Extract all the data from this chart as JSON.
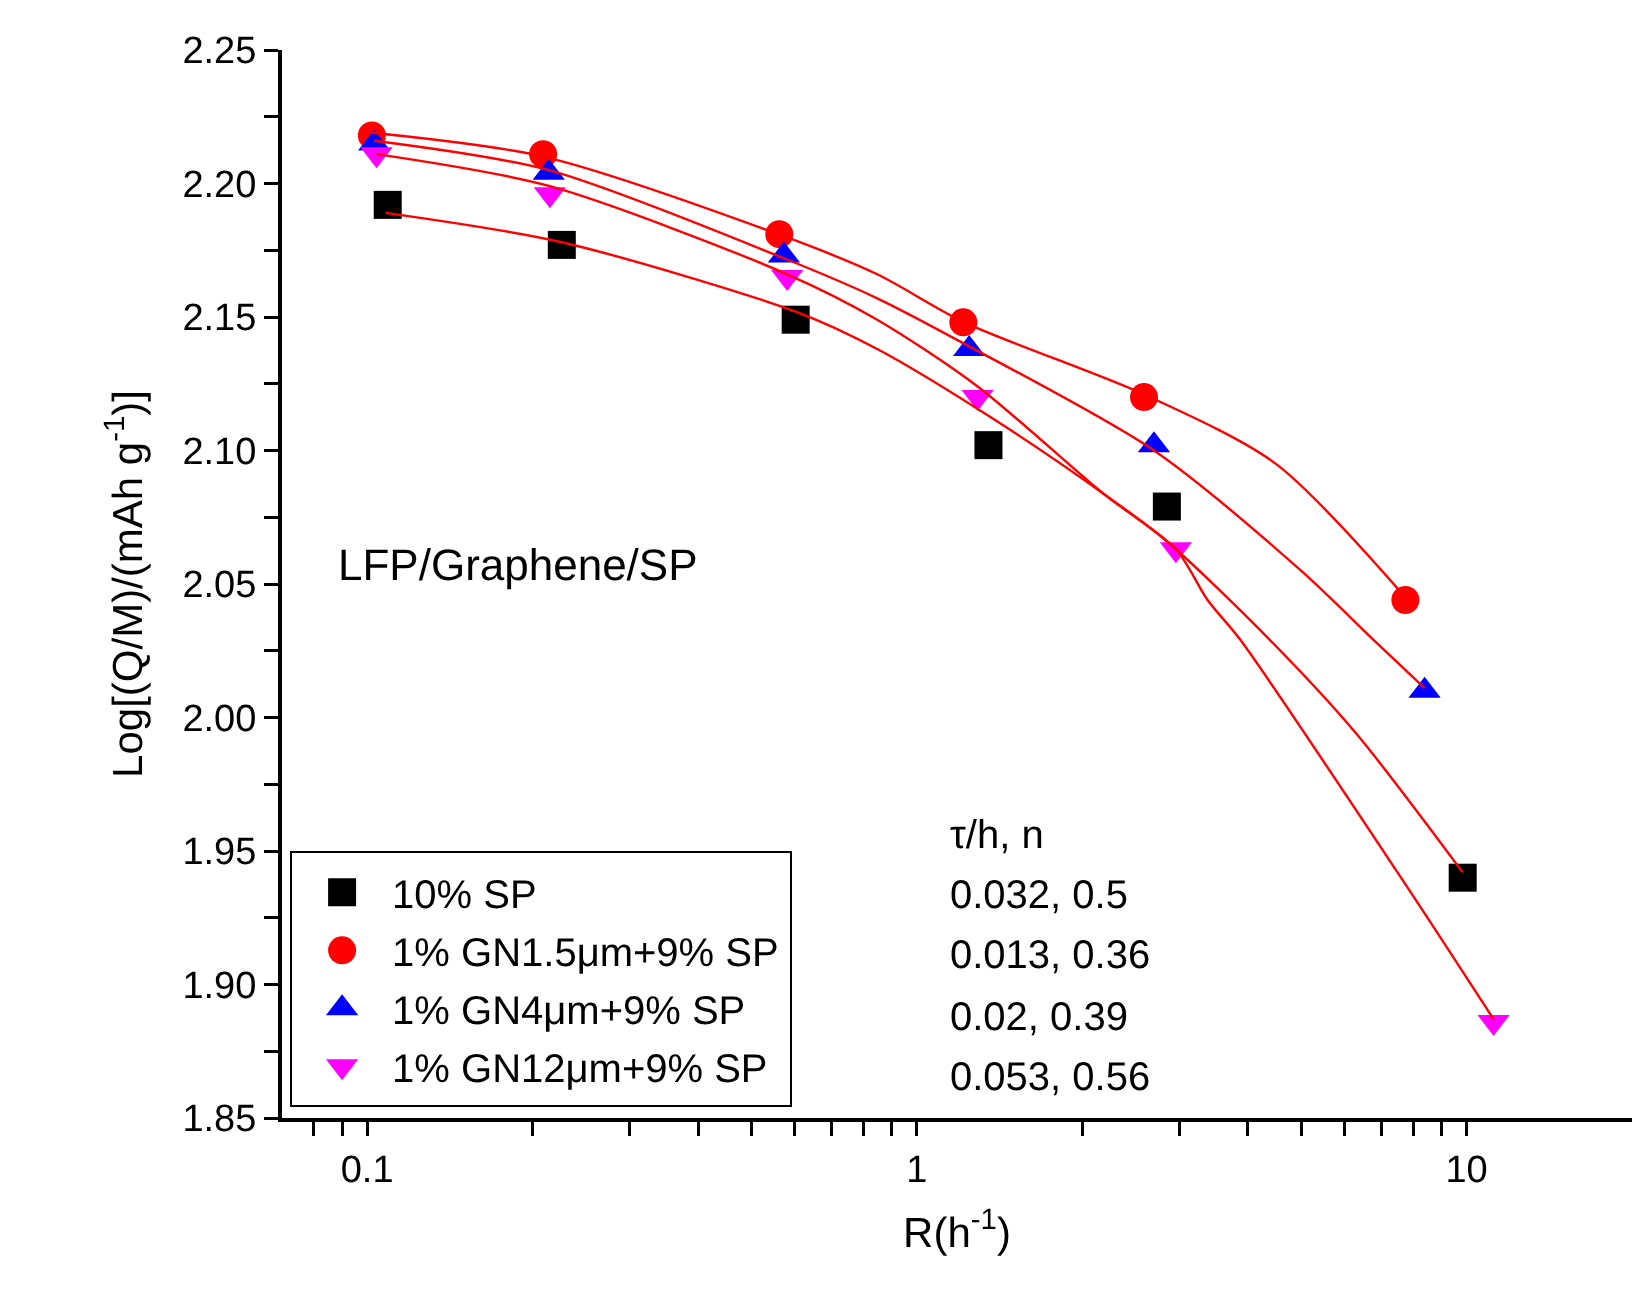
{
  "chart_data": {
    "type": "scatter",
    "xlabel": "R(h$^{-1}$)",
    "ylabel": "Log[(Q/M)/(mAh g$^{-1}$)]",
    "log": "x",
    "xlim": [
      0.07,
      20
    ],
    "xticks": [
      {
        "value": 0.08,
        "label": null
      },
      {
        "value": 0.09,
        "label": null
      },
      0.1,
      {
        "value": 0.2,
        "label": null
      },
      {
        "value": 0.3,
        "label": null
      },
      {
        "value": 0.4,
        "label": null
      },
      {
        "value": 0.5,
        "label": null
      },
      {
        "value": 0.6,
        "label": null
      },
      {
        "value": 0.7,
        "label": null
      },
      {
        "value": 0.8,
        "label": null
      },
      {
        "value": 0.9,
        "label": null
      },
      1,
      {
        "value": 2,
        "label": null
      },
      {
        "value": 3,
        "label": null
      },
      {
        "value": 4,
        "label": null
      },
      {
        "value": 5,
        "label": null
      },
      {
        "value": 6,
        "label": null
      },
      {
        "value": 7,
        "label": null
      },
      {
        "value": 8,
        "label": null
      },
      {
        "value": 9,
        "label": null
      },
      10
    ],
    "ylim": [
      1.85,
      2.25
    ],
    "yticks": [
      {
        "value": 1.85,
        "label": "1.85"
      },
      {
        "value": 1.875,
        "label": null
      },
      {
        "value": 1.9,
        "label": "1.90"
      },
      {
        "value": 1.925,
        "label": null
      },
      {
        "value": 1.95,
        "label": "1.95"
      },
      {
        "value": 1.975,
        "label": null
      },
      {
        "value": 2.0,
        "label": "2.00"
      },
      {
        "value": 2.025,
        "label": null
      },
      {
        "value": 2.05,
        "label": "2.05"
      },
      {
        "value": 2.075,
        "label": null
      },
      {
        "value": 2.1,
        "label": "2.10"
      },
      {
        "value": 2.125,
        "label": null
      },
      {
        "value": 2.15,
        "label": "2.15"
      },
      {
        "value": 2.175,
        "label": null
      },
      {
        "value": 2.2,
        "label": "2.20"
      },
      {
        "value": 2.225,
        "label": null
      },
      {
        "value": 2.25,
        "label": "2.25"
      }
    ],
    "grid": false,
    "legend": "bottom left",
    "annotations": [
      "LFP/Graphene/SP",
      "τ/h, n",
      "0.032, 0.5",
      "0.013, 0.36",
      "0.02, 0.39",
      "0.053, 0.56"
    ],
    "series": [
      {
        "type": "line",
        "color": "#ff0000",
        "marker": "none",
        "x": [
          0.108,
          0.226,
          0.602,
          0.847,
          1.35,
          2.18,
          2.85,
          4.39,
          6.3,
          9.84
        ],
        "values": [
          2.189,
          2.178,
          2.152,
          2.138,
          2.113,
          2.084,
          2.066,
          2.029,
          1.994,
          1.942
        ]
      },
      {
        "type": "line",
        "color": "#ff0000",
        "marker": "none",
        "x": [
          0.102,
          0.21,
          0.56,
          0.847,
          1.22,
          2.59,
          4.5,
          7.74
        ],
        "values": [
          2.219,
          2.21,
          2.181,
          2.166,
          2.148,
          2.121,
          2.095,
          2.045
        ]
      },
      {
        "type": "line",
        "color": "#ff0000",
        "marker": "none",
        "x": [
          0.103,
          0.214,
          0.573,
          0.847,
          1.245,
          2.7,
          5.0,
          6.78,
          8.39
        ],
        "values": [
          2.216,
          2.205,
          2.172,
          2.157,
          2.139,
          2.1,
          2.055,
          2.029,
          2.011
        ]
      },
      {
        "type": "line",
        "color": "#ff0000",
        "marker": "none",
        "x": [
          0.104,
          0.215,
          0.581,
          0.847,
          1.29,
          2.18,
          2.96,
          3.38,
          3.88,
          7.6,
          11.2
        ],
        "values": [
          2.211,
          2.199,
          2.166,
          2.149,
          2.124,
          2.084,
          2.063,
          2.044,
          2.029,
          1.94,
          1.887
        ]
      },
      {
        "name": "10% SP",
        "color": "#000000",
        "marker": "square",
        "x": [
          0.109,
          0.226,
          0.602,
          1.35,
          2.85,
          9.84
        ],
        "values": [
          2.192,
          2.177,
          2.149,
          2.102,
          2.079,
          1.94
        ]
      },
      {
        "name": "1% GN1.5μm+9% SP",
        "color": "#ff0000",
        "marker": "circle",
        "x": [
          0.102,
          0.209,
          0.562,
          1.215,
          2.59,
          7.74
        ],
        "values": [
          2.218,
          2.211,
          2.181,
          2.148,
          2.12,
          2.044
        ]
      },
      {
        "name": "1% GN4μm+9% SP",
        "color": "#0000ff",
        "marker": "triangle",
        "x": [
          0.103,
          0.214,
          0.573,
          1.245,
          2.7,
          8.39
        ],
        "values": [
          2.215,
          2.204,
          2.173,
          2.138,
          2.102,
          2.01
        ]
      },
      {
        "name": "1% GN12μm+9% SP",
        "color": "#ff00ff",
        "marker": "triangle-down",
        "x": [
          0.104,
          0.215,
          0.581,
          1.29,
          2.96,
          11.2
        ],
        "values": [
          2.211,
          2.196,
          2.165,
          2.12,
          2.063,
          1.886
        ]
      }
    ]
  }
}
